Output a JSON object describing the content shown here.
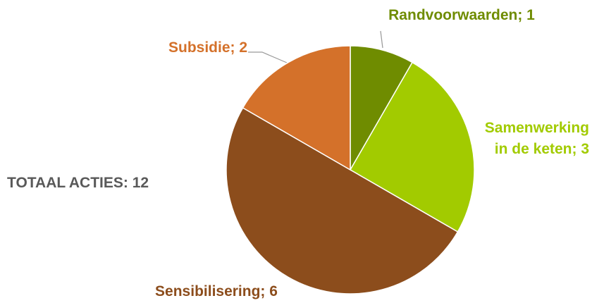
{
  "chart_data": {
    "type": "pie",
    "values": [
      1,
      3,
      6,
      2
    ],
    "value_labels": [
      [
        "Randvoorwaarden; 1"
      ],
      [
        "Samenwerking",
        "in de keten; 3"
      ],
      [
        "Sensibilisering; 6"
      ],
      [
        "Subsidie; 2"
      ]
    ],
    "colors": [
      "#6f8c00",
      "#a2cb00",
      "#8c4d1c",
      "#d4712a"
    ],
    "annotation": "TOTAAL ACTIES: 12"
  }
}
